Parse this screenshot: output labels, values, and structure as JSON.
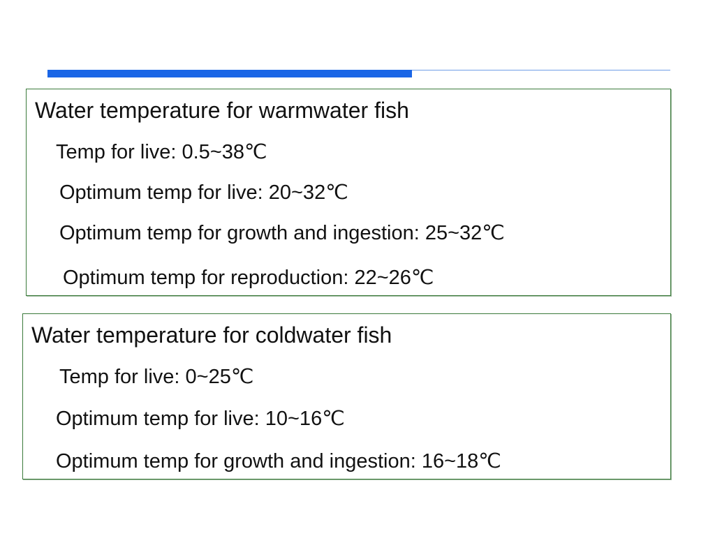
{
  "sections": [
    {
      "title": "Water temperature for warmwater fish",
      "items": [
        "Temp for live: 0.5~38℃",
        "Optimum temp for live: 20~32℃",
        "Optimum temp for growth and ingestion: 25~32℃",
        "Optimum temp for reproduction: 22~26℃"
      ]
    },
    {
      "title": "Water temperature for coldwater fish",
      "items": [
        "Temp for live: 0~25℃",
        "Optimum temp for live: 10~16℃",
        "Optimum temp for growth and ingestion: 16~18℃"
      ]
    }
  ]
}
